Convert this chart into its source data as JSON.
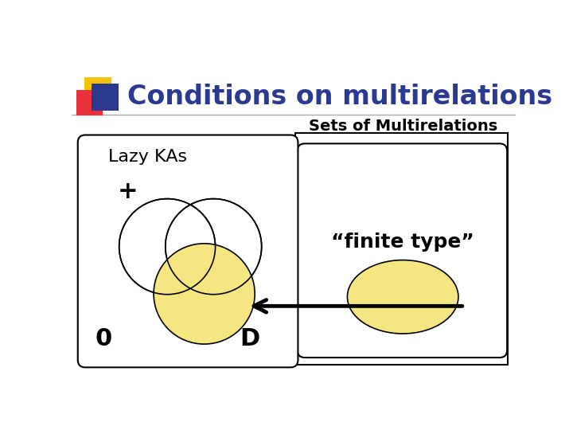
{
  "title": "Conditions on multirelations",
  "title_color": "#2B3990",
  "title_fontsize": 24,
  "bg_color": "#FFFFFF",
  "sets_label": "Sets of Multirelations",
  "lazy_ka_label": "Lazy KAs",
  "plus_label": "+",
  "zero_label": "0",
  "D_label": "D",
  "finite_type_label": "“finite type”",
  "yellow_fill": "#F5E682",
  "circle_edge": "#000000",
  "box_edge": "#000000",
  "arrow_color": "#000000",
  "logo_yellow": "#F5C400",
  "logo_red": "#E8313A",
  "logo_blue": "#2B3990",
  "title_line_color": "#AAAAAA",
  "sets_label_fontsize": 14,
  "lazy_ka_fontsize": 16,
  "plus_fontsize": 22,
  "zero_fontsize": 22,
  "D_fontsize": 22,
  "finite_type_fontsize": 18
}
